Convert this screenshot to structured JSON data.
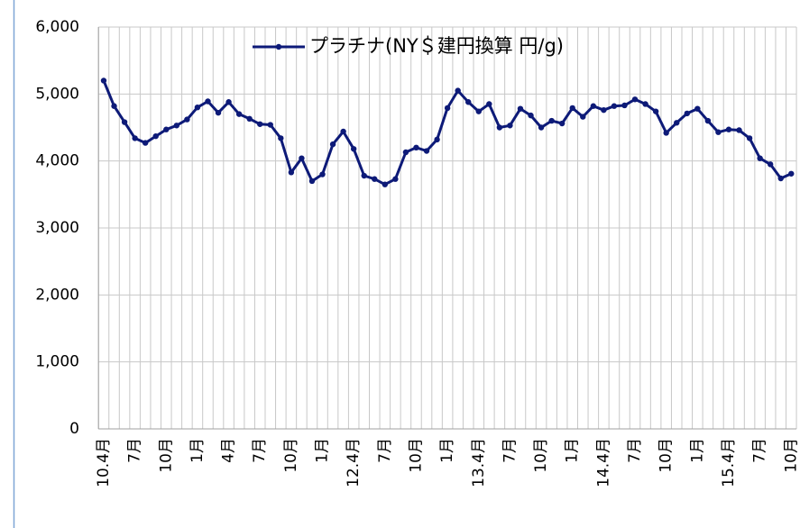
{
  "chart_data": {
    "type": "line",
    "categories": [
      "10.4月",
      null,
      null,
      "7月",
      null,
      null,
      "10月",
      null,
      null,
      "1月",
      null,
      null,
      "4月",
      null,
      null,
      "7月",
      null,
      null,
      "10月",
      null,
      null,
      "1月",
      null,
      null,
      "12.4月",
      null,
      null,
      "7月",
      null,
      null,
      "10月",
      null,
      null,
      "1月",
      null,
      null,
      "13.4月",
      null,
      null,
      "7月",
      null,
      null,
      "10月",
      null,
      null,
      "1月",
      null,
      null,
      "14.4月",
      null,
      null,
      "7月",
      null,
      null,
      "10月",
      null,
      null,
      "1月",
      null,
      null,
      "15.4月",
      null,
      null,
      "7月",
      null,
      null,
      "10月"
    ],
    "series": [
      {
        "name": "プラチナ(NY＄建円換算 円/g)",
        "color": "#0d1a78",
        "values": [
          5200,
          4820,
          4580,
          4340,
          4270,
          4370,
          4470,
          4530,
          4620,
          4800,
          4890,
          4720,
          4880,
          4700,
          4630,
          4550,
          4540,
          4340,
          3830,
          4040,
          3700,
          3800,
          4250,
          4440,
          4180,
          3780,
          3730,
          3650,
          3730,
          4130,
          4200,
          4150,
          4320,
          4790,
          5050,
          4880,
          4740,
          4850,
          4500,
          4530,
          4780,
          4680,
          4500,
          4600,
          4560,
          4790,
          4660,
          4820,
          4760,
          4820,
          4830,
          4920,
          4850,
          4740,
          4420,
          4570,
          4710,
          4780,
          4600,
          4430,
          4470,
          4460,
          4340,
          4040,
          3950,
          3740,
          3810
        ]
      }
    ],
    "ylim": [
      0,
      6000
    ],
    "yticks": [
      0,
      {
        "value": 1000,
        "label": "1,000"
      },
      {
        "value": 2000,
        "label": "2,000"
      },
      {
        "value": 3000,
        "label": "3,000"
      },
      {
        "value": 4000,
        "label": "4,000"
      },
      {
        "value": 5000,
        "label": "5,000"
      },
      {
        "value": 6000,
        "label": "6,000"
      }
    ],
    "grid": true,
    "legend": "top"
  }
}
